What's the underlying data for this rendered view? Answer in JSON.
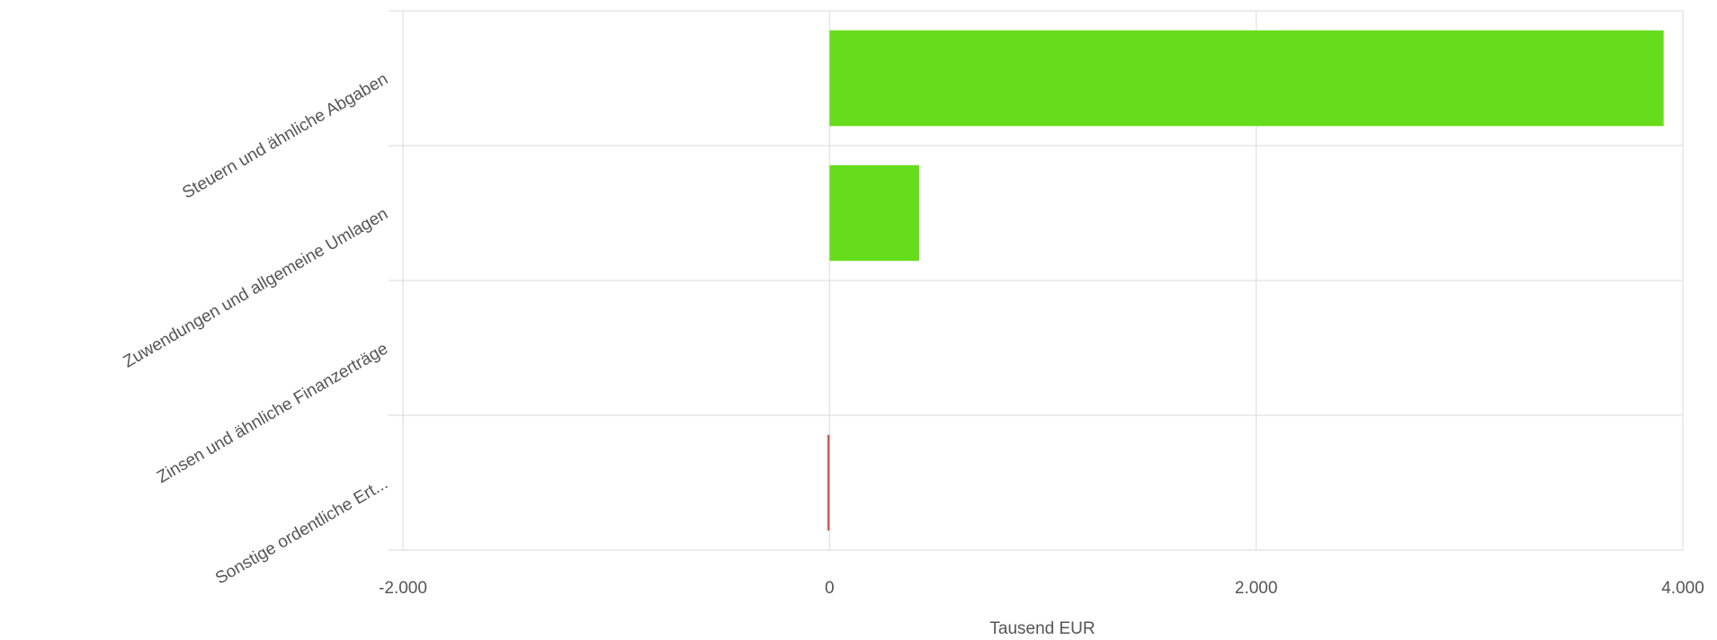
{
  "chart_data": {
    "type": "hbar",
    "categories": [
      "Steuern und ähnliche Abgaben",
      "Zuwendungen und allgemeine Umlagen",
      "Zinsen und ähnliche Finanzerträge",
      "Sonstige ordentliche Ert..."
    ],
    "values": [
      3910,
      420,
      0,
      -10
    ],
    "colors": [
      "#66dd1a",
      "#66dd1a",
      "#66dd1a",
      "#d9534f"
    ],
    "xlabel": "Tausend EUR",
    "xlim": [
      -2000,
      4000
    ],
    "xticks": [
      {
        "value": -2000,
        "label": "-2.000"
      },
      0,
      {
        "value": 2000,
        "label": "2.000"
      },
      {
        "value": 4000,
        "label": "4.000"
      }
    ],
    "grid": true
  }
}
